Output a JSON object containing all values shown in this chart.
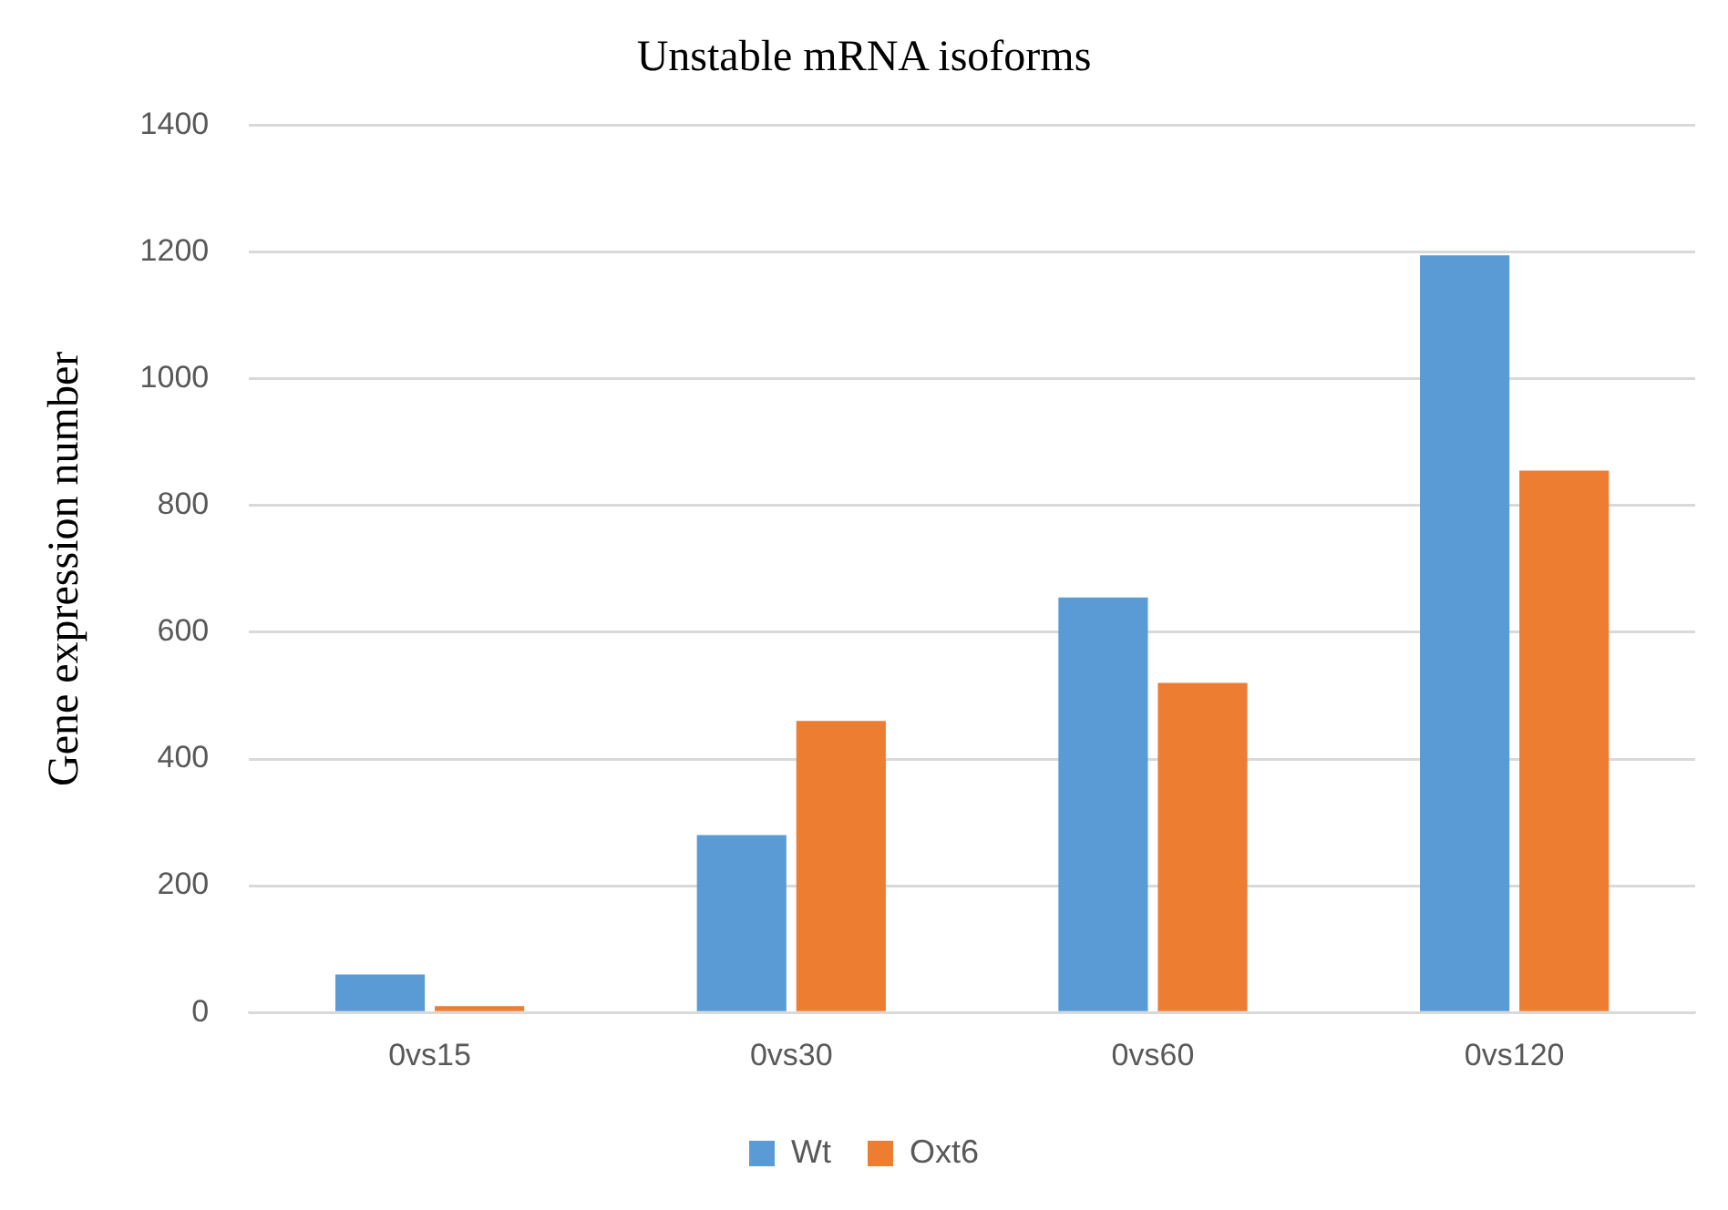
{
  "chart_data": {
    "type": "bar",
    "title": "Unstable mRNA isoforms",
    "ylabel": "Gene expression number",
    "categories": [
      "0vs15",
      "0vs30",
      "0vs60",
      "0vs120"
    ],
    "series": [
      {
        "name": "Wt",
        "color": "#5b9bd5",
        "values": [
          60,
          280,
          655,
          1195
        ]
      },
      {
        "name": "Oxt6",
        "color": "#ed7d31",
        "values": [
          10,
          460,
          520,
          855
        ]
      }
    ],
    "ylim": [
      0,
      1400
    ],
    "yticks": [
      0,
      200,
      400,
      600,
      800,
      1000,
      1200,
      1400
    ],
    "grid": "y",
    "legend": "bottom"
  }
}
